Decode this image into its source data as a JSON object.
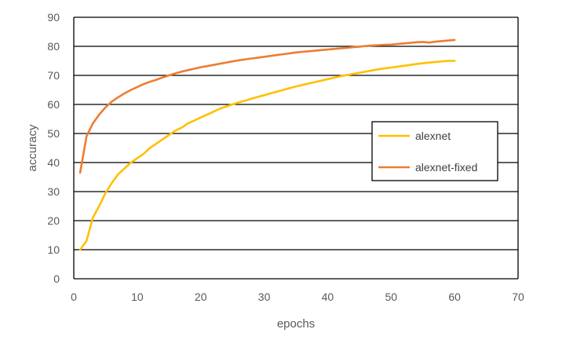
{
  "chart_data": {
    "type": "line",
    "title": "",
    "xlabel": "epochs",
    "ylabel": "accuracy",
    "xlim": [
      0,
      70
    ],
    "ylim": [
      0,
      90
    ],
    "xticks": [
      0,
      10,
      20,
      30,
      40,
      50,
      60,
      70
    ],
    "yticks": [
      0,
      10,
      20,
      30,
      40,
      50,
      60,
      70,
      80,
      90
    ],
    "grid": "horizontal major gridlines",
    "legend_position": "right",
    "series": [
      {
        "name": "alexnet",
        "color": "#FFC000",
        "x": [
          1,
          2,
          3,
          4,
          5,
          6,
          7,
          8,
          9,
          10,
          11,
          12,
          13,
          14,
          15,
          16,
          17,
          18,
          19,
          20,
          21,
          22,
          23,
          24,
          25,
          26,
          27,
          28,
          29,
          30,
          31,
          32,
          33,
          34,
          35,
          36,
          37,
          38,
          39,
          40,
          41,
          42,
          43,
          44,
          45,
          46,
          47,
          48,
          49,
          50,
          51,
          52,
          53,
          54,
          55,
          56,
          57,
          58,
          59,
          60
        ],
        "values": [
          10,
          13,
          21,
          25,
          29.5,
          33,
          36,
          38,
          40,
          41.5,
          43,
          45,
          46.5,
          48,
          49.5,
          51,
          52,
          53.5,
          54.5,
          55.5,
          56.5,
          57.5,
          58.5,
          59.3,
          60,
          60.7,
          61.3,
          62,
          62.6,
          63.2,
          63.8,
          64.4,
          65,
          65.6,
          66.2,
          66.7,
          67.2,
          67.7,
          68.2,
          68.7,
          69.2,
          69.7,
          70.1,
          70.5,
          70.9,
          71.3,
          71.7,
          72.1,
          72.4,
          72.7,
          73,
          73.3,
          73.6,
          73.9,
          74.2,
          74.4,
          74.6,
          74.8,
          75,
          75
        ]
      },
      {
        "name": "alexnet-fixed",
        "color": "#ED7D31",
        "x": [
          1,
          2,
          3,
          4,
          5,
          6,
          7,
          8,
          9,
          10,
          11,
          12,
          13,
          14,
          15,
          16,
          17,
          18,
          19,
          20,
          21,
          22,
          23,
          24,
          25,
          26,
          27,
          28,
          29,
          30,
          31,
          32,
          33,
          34,
          35,
          36,
          37,
          38,
          39,
          40,
          41,
          42,
          43,
          44,
          45,
          46,
          47,
          48,
          49,
          50,
          51,
          52,
          53,
          54,
          55,
          56,
          57,
          58,
          59,
          60
        ],
        "values": [
          36.5,
          49,
          53.5,
          56.5,
          59,
          61,
          62.5,
          63.8,
          65,
          66,
          67,
          67.8,
          68.5,
          69.3,
          70,
          70.7,
          71.3,
          71.8,
          72.3,
          72.8,
          73.2,
          73.6,
          74,
          74.4,
          74.8,
          75.2,
          75.5,
          75.8,
          76.1,
          76.4,
          76.7,
          77,
          77.3,
          77.6,
          77.9,
          78.1,
          78.3,
          78.5,
          78.7,
          78.9,
          79.1,
          79.3,
          79.5,
          79.7,
          79.9,
          80.1,
          80.3,
          80.4,
          80.5,
          80.6,
          80.8,
          81,
          81.2,
          81.4,
          81.5,
          81.3,
          81.6,
          81.8,
          82,
          82.2
        ]
      }
    ]
  }
}
